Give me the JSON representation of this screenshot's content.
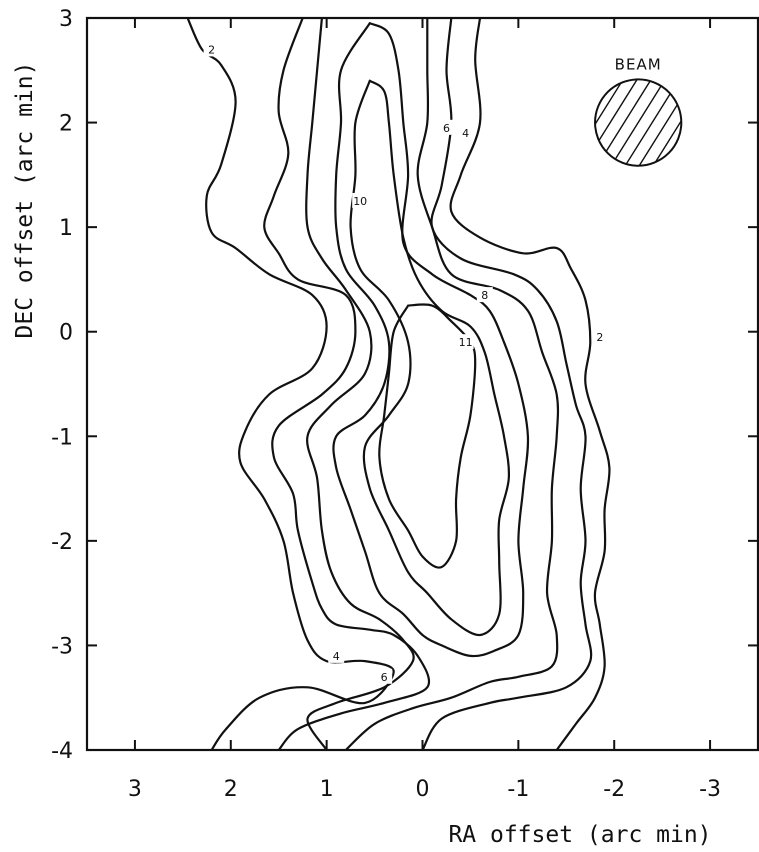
{
  "chart_data": {
    "type": "contour",
    "title": "",
    "xlabel": "RA offset (arc min)",
    "ylabel": "DEC offset (arc min)",
    "xlim": [
      3.5,
      -3.5
    ],
    "ylim": [
      -4,
      3
    ],
    "x_ticks": [
      3,
      2,
      1,
      0,
      -1,
      -2,
      -3
    ],
    "x_tick_labels": [
      "3",
      "2",
      "1",
      "0",
      "-1",
      "-2",
      "-3"
    ],
    "y_ticks": [
      3,
      2,
      1,
      0,
      -1,
      -2,
      -3,
      -4
    ],
    "y_tick_labels": [
      "3",
      "2",
      "1",
      "0",
      "-1",
      "-2",
      "-3",
      "-4"
    ],
    "grid": false,
    "contour_levels": [
      2,
      4,
      6,
      8,
      10,
      11
    ],
    "contours": [
      {
        "level": 2,
        "label": "2",
        "side": "left",
        "points": [
          [
            2.45,
            3.0
          ],
          [
            2.3,
            2.7
          ],
          [
            2.1,
            2.55
          ],
          [
            1.95,
            2.2
          ],
          [
            2.1,
            1.6
          ],
          [
            2.25,
            1.3
          ],
          [
            2.2,
            0.95
          ],
          [
            1.95,
            0.8
          ],
          [
            1.6,
            0.55
          ],
          [
            1.15,
            0.35
          ],
          [
            1.0,
            0.05
          ],
          [
            1.15,
            -0.35
          ],
          [
            1.6,
            -0.6
          ],
          [
            1.85,
            -0.95
          ],
          [
            1.9,
            -1.25
          ],
          [
            1.65,
            -1.6
          ],
          [
            1.45,
            -2.0
          ],
          [
            1.35,
            -2.5
          ],
          [
            1.2,
            -2.95
          ],
          [
            1.0,
            -3.15
          ],
          [
            0.6,
            -3.15
          ],
          [
            0.3,
            -3.25
          ],
          [
            0.6,
            -3.55
          ],
          [
            1.2,
            -3.4
          ],
          [
            1.7,
            -3.5
          ],
          [
            2.05,
            -3.8
          ],
          [
            2.2,
            -4.0
          ]
        ],
        "label_at": [
          2.2,
          2.7
        ]
      },
      {
        "level": 2,
        "label": "2",
        "side": "right",
        "points": [
          [
            -0.6,
            3.0
          ],
          [
            -0.55,
            2.6
          ],
          [
            -0.6,
            2.0
          ],
          [
            -0.4,
            1.5
          ],
          [
            -0.3,
            1.15
          ],
          [
            -0.6,
            0.9
          ],
          [
            -1.05,
            0.75
          ],
          [
            -1.4,
            0.8
          ],
          [
            -1.55,
            0.6
          ],
          [
            -1.7,
            0.3
          ],
          [
            -1.75,
            -0.1
          ],
          [
            -1.7,
            -0.5
          ],
          [
            -1.85,
            -0.95
          ],
          [
            -1.95,
            -1.3
          ],
          [
            -1.9,
            -1.7
          ],
          [
            -1.9,
            -2.1
          ],
          [
            -1.8,
            -2.5
          ],
          [
            -1.85,
            -2.8
          ],
          [
            -1.9,
            -3.2
          ],
          [
            -1.8,
            -3.5
          ],
          [
            -1.6,
            -3.75
          ],
          [
            -1.4,
            -4.0
          ]
        ],
        "label_at": [
          -1.85,
          -0.05
        ]
      },
      {
        "level": 4,
        "label": "4",
        "side": "left",
        "points": [
          [
            1.25,
            3.0
          ],
          [
            1.45,
            2.5
          ],
          [
            1.5,
            2.1
          ],
          [
            1.4,
            1.7
          ],
          [
            1.55,
            1.3
          ],
          [
            1.65,
            1.0
          ],
          [
            1.5,
            0.75
          ],
          [
            1.3,
            0.5
          ],
          [
            0.8,
            0.35
          ],
          [
            0.7,
            0.0
          ],
          [
            0.8,
            -0.35
          ],
          [
            1.05,
            -0.6
          ],
          [
            1.5,
            -0.9
          ],
          [
            1.55,
            -1.2
          ],
          [
            1.35,
            -1.55
          ],
          [
            1.3,
            -1.9
          ],
          [
            1.15,
            -2.4
          ],
          [
            1.05,
            -2.65
          ],
          [
            0.9,
            -2.8
          ],
          [
            0.55,
            -2.85
          ],
          [
            0.3,
            -2.9
          ],
          [
            0.05,
            -3.1
          ],
          [
            -0.05,
            -3.4
          ],
          [
            0.4,
            -3.55
          ],
          [
            0.85,
            -3.65
          ],
          [
            1.3,
            -3.8
          ],
          [
            1.5,
            -4.0
          ]
        ],
        "label_at": [
          0.9,
          -3.1
        ]
      },
      {
        "level": 4,
        "label": "4",
        "side": "right",
        "points": [
          [
            -0.3,
            3.0
          ],
          [
            -0.25,
            2.5
          ],
          [
            -0.3,
            2.0
          ],
          [
            -0.2,
            1.4
          ],
          [
            -0.1,
            1.0
          ],
          [
            -0.4,
            0.7
          ],
          [
            -0.95,
            0.55
          ],
          [
            -1.2,
            0.4
          ],
          [
            -1.4,
            0.1
          ],
          [
            -1.5,
            -0.3
          ],
          [
            -1.6,
            -0.7
          ],
          [
            -1.7,
            -1.0
          ],
          [
            -1.65,
            -1.5
          ],
          [
            -1.7,
            -2.0
          ],
          [
            -1.65,
            -2.4
          ],
          [
            -1.7,
            -2.8
          ],
          [
            -1.75,
            -3.15
          ],
          [
            -1.5,
            -3.4
          ],
          [
            -1.0,
            -3.5
          ],
          [
            -0.7,
            -3.55
          ],
          [
            -0.2,
            -3.7
          ],
          [
            0.0,
            -4.0
          ]
        ],
        "label_at": [
          -0.45,
          1.9
        ]
      },
      {
        "level": 6,
        "label": "6",
        "side": "left",
        "points": [
          [
            1.05,
            3.0
          ],
          [
            1.1,
            2.5
          ],
          [
            1.15,
            2.0
          ],
          [
            1.2,
            1.5
          ],
          [
            1.2,
            1.0
          ],
          [
            1.05,
            0.7
          ],
          [
            0.8,
            0.4
          ],
          [
            0.55,
            0.0
          ],
          [
            0.6,
            -0.4
          ],
          [
            0.95,
            -0.7
          ],
          [
            1.2,
            -1.0
          ],
          [
            1.1,
            -1.4
          ],
          [
            1.05,
            -1.9
          ],
          [
            0.95,
            -2.3
          ],
          [
            0.75,
            -2.6
          ],
          [
            0.45,
            -2.75
          ],
          [
            0.2,
            -2.95
          ],
          [
            0.1,
            -3.15
          ],
          [
            0.4,
            -3.4
          ],
          [
            0.9,
            -3.55
          ],
          [
            1.2,
            -3.7
          ],
          [
            1.0,
            -4.0
          ]
        ],
        "label_at": [
          0.4,
          -3.3
        ]
      },
      {
        "level": 6,
        "label": "6",
        "side": "right",
        "points": [
          [
            -0.05,
            3.0
          ],
          [
            -0.05,
            2.5
          ],
          [
            -0.05,
            2.0
          ],
          [
            0.05,
            1.5
          ],
          [
            -0.1,
            1.0
          ],
          [
            -0.3,
            0.55
          ],
          [
            -0.8,
            0.4
          ],
          [
            -1.1,
            0.2
          ],
          [
            -1.25,
            -0.2
          ],
          [
            -1.4,
            -0.6
          ],
          [
            -1.4,
            -1.0
          ],
          [
            -1.35,
            -1.5
          ],
          [
            -1.35,
            -2.0
          ],
          [
            -1.3,
            -2.5
          ],
          [
            -1.4,
            -2.9
          ],
          [
            -1.35,
            -3.2
          ],
          [
            -1.0,
            -3.3
          ],
          [
            -0.7,
            -3.35
          ],
          [
            -0.3,
            -3.5
          ],
          [
            0.1,
            -3.6
          ],
          [
            0.5,
            -3.75
          ],
          [
            0.8,
            -4.0
          ]
        ],
        "label_at": [
          -0.25,
          1.95
        ]
      },
      {
        "level": 8,
        "label": "8",
        "side": "outer",
        "points": [
          [
            0.55,
            2.95
          ],
          [
            0.85,
            2.5
          ],
          [
            0.85,
            2.0
          ],
          [
            0.9,
            1.5
          ],
          [
            0.9,
            1.0
          ],
          [
            0.8,
            0.6
          ],
          [
            0.5,
            0.25
          ],
          [
            0.35,
            -0.1
          ],
          [
            0.4,
            -0.5
          ],
          [
            0.6,
            -0.8
          ],
          [
            0.9,
            -1.0
          ],
          [
            0.9,
            -1.3
          ],
          [
            0.75,
            -1.7
          ],
          [
            0.6,
            -2.1
          ],
          [
            0.45,
            -2.5
          ],
          [
            0.2,
            -2.7
          ],
          [
            0.0,
            -2.9
          ],
          [
            -0.2,
            -3.0
          ],
          [
            -0.5,
            -3.1
          ],
          [
            -0.75,
            -3.05
          ],
          [
            -1.0,
            -2.9
          ],
          [
            -1.05,
            -2.5
          ],
          [
            -1.0,
            -2.0
          ],
          [
            -1.05,
            -1.5
          ],
          [
            -1.1,
            -1.0
          ],
          [
            -1.0,
            -0.5
          ],
          [
            -0.85,
            -0.1
          ],
          [
            -0.7,
            0.2
          ],
          [
            -0.5,
            0.35
          ],
          [
            -0.1,
            0.55
          ],
          [
            0.2,
            0.85
          ],
          [
            0.15,
            1.5
          ],
          [
            0.2,
            2.0
          ],
          [
            0.25,
            2.5
          ],
          [
            0.35,
            2.85
          ],
          [
            0.55,
            2.95
          ]
        ],
        "label_at": [
          -0.65,
          0.35
        ]
      },
      {
        "level": 10,
        "label": "10",
        "side": "inner",
        "points": [
          [
            0.55,
            2.4
          ],
          [
            0.7,
            2.0
          ],
          [
            0.7,
            1.5
          ],
          [
            0.75,
            1.0
          ],
          [
            0.65,
            0.6
          ],
          [
            0.35,
            0.3
          ],
          [
            0.15,
            -0.1
          ],
          [
            0.15,
            -0.5
          ],
          [
            0.35,
            -0.8
          ],
          [
            0.6,
            -1.1
          ],
          [
            0.55,
            -1.5
          ],
          [
            0.35,
            -1.9
          ],
          [
            0.15,
            -2.3
          ],
          [
            -0.05,
            -2.5
          ],
          [
            -0.3,
            -2.75
          ],
          [
            -0.6,
            -2.9
          ],
          [
            -0.8,
            -2.7
          ],
          [
            -0.8,
            -2.2
          ],
          [
            -0.8,
            -1.8
          ],
          [
            -0.9,
            -1.4
          ],
          [
            -0.85,
            -1.0
          ],
          [
            -0.75,
            -0.6
          ],
          [
            -0.65,
            -0.2
          ],
          [
            -0.5,
            0.05
          ],
          [
            -0.2,
            0.2
          ],
          [
            0.05,
            0.5
          ],
          [
            0.2,
            0.9
          ],
          [
            0.3,
            1.5
          ],
          [
            0.35,
            2.0
          ],
          [
            0.4,
            2.3
          ],
          [
            0.55,
            2.4
          ]
        ],
        "label_at": [
          0.65,
          1.25
        ]
      },
      {
        "level": 11,
        "label": "11",
        "side": "peak",
        "points": [
          [
            0.15,
            0.25
          ],
          [
            0.3,
            0.0
          ],
          [
            0.35,
            -0.4
          ],
          [
            0.4,
            -0.8
          ],
          [
            0.45,
            -1.2
          ],
          [
            0.35,
            -1.6
          ],
          [
            0.15,
            -1.9
          ],
          [
            0.0,
            -2.15
          ],
          [
            -0.2,
            -2.25
          ],
          [
            -0.35,
            -2.0
          ],
          [
            -0.35,
            -1.6
          ],
          [
            -0.4,
            -1.2
          ],
          [
            -0.5,
            -0.8
          ],
          [
            -0.55,
            -0.3
          ],
          [
            -0.5,
            -0.1
          ],
          [
            -0.3,
            0.1
          ],
          [
            -0.1,
            0.25
          ],
          [
            0.15,
            0.25
          ]
        ],
        "label_at": [
          -0.45,
          -0.1
        ]
      }
    ],
    "annotations": [
      {
        "text": "BEAM",
        "position": "top-right"
      }
    ],
    "beam": {
      "center": [
        -2.25,
        2.0
      ],
      "radius_arcmin": 0.45,
      "fill": "hatched"
    }
  }
}
